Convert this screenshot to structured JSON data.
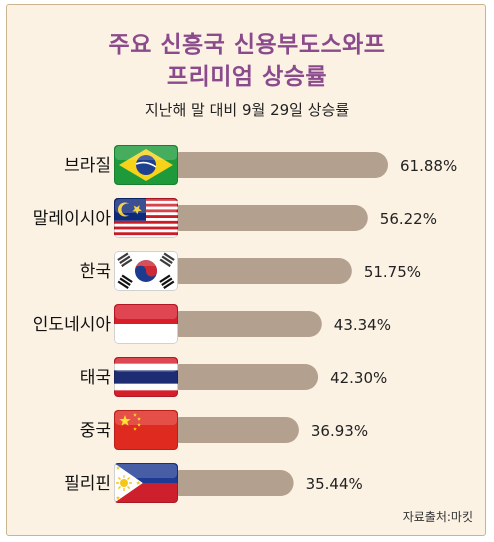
{
  "chart_data": {
    "type": "bar",
    "orientation": "horizontal",
    "title": "주요 신흥국 신용부도스와프 프리미엄 상승률",
    "title_lines": [
      "주요 신흥국 신용부도스와프",
      "프리미엄 상승률"
    ],
    "subtitle": "지난해 말 대비 9월 29일 상승률",
    "categories": [
      "브라질",
      "말레이시아",
      "한국",
      "인도네시아",
      "태국",
      "중국",
      "필리핀"
    ],
    "values": [
      61.88,
      56.22,
      51.75,
      43.34,
      42.3,
      36.93,
      35.44
    ],
    "value_labels": [
      "61.88%",
      "56.22%",
      "51.75%",
      "43.34%",
      "42.30%",
      "36.93%",
      "35.44%"
    ],
    "flags": [
      "brazil-flag",
      "malaysia-flag",
      "south-korea-flag",
      "indonesia-flag",
      "thailand-flag",
      "china-flag",
      "philippines-flag"
    ],
    "bar_color": "#b3a08f",
    "grid": false,
    "legend": "none",
    "xlim": [
      0,
      61.88
    ]
  },
  "source": "자료출처:마킷",
  "colors": {
    "title": "#8a4a8c",
    "background": "#fbf2e4",
    "bar": "#b3a08f"
  }
}
